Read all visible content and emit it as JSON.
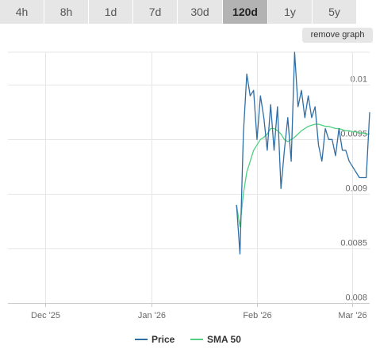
{
  "tabs": [
    {
      "label": "4h",
      "active": false
    },
    {
      "label": "8h",
      "active": false
    },
    {
      "label": "1d",
      "active": false
    },
    {
      "label": "7d",
      "active": false
    },
    {
      "label": "30d",
      "active": false
    },
    {
      "label": "120d",
      "active": true
    },
    {
      "label": "1y",
      "active": false
    },
    {
      "label": "5y",
      "active": false
    }
  ],
  "remove_graph_label": "remove graph",
  "legend": [
    {
      "name": "Price",
      "color": "#2f6ea5"
    },
    {
      "name": "SMA 50",
      "color": "#4fd17f"
    }
  ],
  "chart_data": {
    "type": "line",
    "x_ticks": [
      "Dec '25",
      "Jan '26",
      "Feb '26",
      "Mar '26"
    ],
    "y_ticks": [
      "0.008",
      "0.0085",
      "0.009",
      "0.0095",
      "0.01"
    ],
    "ylim": [
      0.008,
      0.0103
    ],
    "grid": true,
    "legend_position": "bottom",
    "series": [
      {
        "name": "Price",
        "color": "#2f6ea5",
        "x": [
          "2026-01-26",
          "2026-01-27",
          "2026-01-28",
          "2026-01-29",
          "2026-01-30",
          "2026-01-31",
          "2026-02-01",
          "2026-02-02",
          "2026-02-03",
          "2026-02-04",
          "2026-02-05",
          "2026-02-06",
          "2026-02-07",
          "2026-02-08",
          "2026-02-09",
          "2026-02-10",
          "2026-02-11",
          "2026-02-12",
          "2026-02-13",
          "2026-02-14",
          "2026-02-15",
          "2026-02-16",
          "2026-02-17",
          "2026-02-18",
          "2026-02-19",
          "2026-02-20",
          "2026-02-21",
          "2026-02-22",
          "2026-02-23",
          "2026-02-24",
          "2026-02-25",
          "2026-02-26",
          "2026-02-27",
          "2026-02-28",
          "2026-03-01",
          "2026-03-02",
          "2026-03-03",
          "2026-03-04",
          "2026-03-05",
          "2026-03-06"
        ],
        "values": [
          0.0089,
          0.00845,
          0.00955,
          0.0101,
          0.0099,
          0.00995,
          0.0095,
          0.0099,
          0.0097,
          0.0094,
          0.00982,
          0.0094,
          0.0098,
          0.00905,
          0.0094,
          0.0097,
          0.0093,
          0.0103,
          0.0098,
          0.00995,
          0.0097,
          0.0099,
          0.0097,
          0.0098,
          0.00945,
          0.0093,
          0.0096,
          0.0095,
          0.0095,
          0.00935,
          0.0096,
          0.0094,
          0.0094,
          0.0093,
          0.00925,
          0.0092,
          0.00915,
          0.00915,
          0.00915,
          0.00975
        ]
      },
      {
        "name": "SMA 50",
        "color": "#4fd17f",
        "x": [
          "2026-01-26",
          "2026-01-27",
          "2026-01-28",
          "2026-01-29",
          "2026-01-30",
          "2026-01-31",
          "2026-02-01",
          "2026-02-02",
          "2026-02-03",
          "2026-02-04",
          "2026-02-05",
          "2026-02-06",
          "2026-02-07",
          "2026-02-08",
          "2026-02-09",
          "2026-02-10",
          "2026-02-11",
          "2026-02-12",
          "2026-02-13",
          "2026-02-14",
          "2026-02-15",
          "2026-02-16",
          "2026-02-17",
          "2026-02-18",
          "2026-02-19",
          "2026-02-20",
          "2026-02-21",
          "2026-02-22",
          "2026-02-23",
          "2026-02-24",
          "2026-02-25",
          "2026-02-26",
          "2026-02-27",
          "2026-02-28",
          "2026-03-01",
          "2026-03-02",
          "2026-03-03",
          "2026-03-04",
          "2026-03-05",
          "2026-03-06"
        ],
        "values": [
          0.0089,
          0.0087,
          0.009,
          0.0092,
          0.0093,
          0.0094,
          0.00945,
          0.0095,
          0.00952,
          0.00955,
          0.0096,
          0.0096,
          0.00958,
          0.00955,
          0.0095,
          0.00948,
          0.0095,
          0.00952,
          0.00955,
          0.00958,
          0.0096,
          0.00962,
          0.00963,
          0.00964,
          0.00964,
          0.00963,
          0.00962,
          0.00962,
          0.00961,
          0.0096,
          0.0096,
          0.00959,
          0.00958,
          0.00958,
          0.00957,
          0.00957,
          0.00956,
          0.00956,
          0.00955,
          0.00955
        ]
      }
    ]
  }
}
